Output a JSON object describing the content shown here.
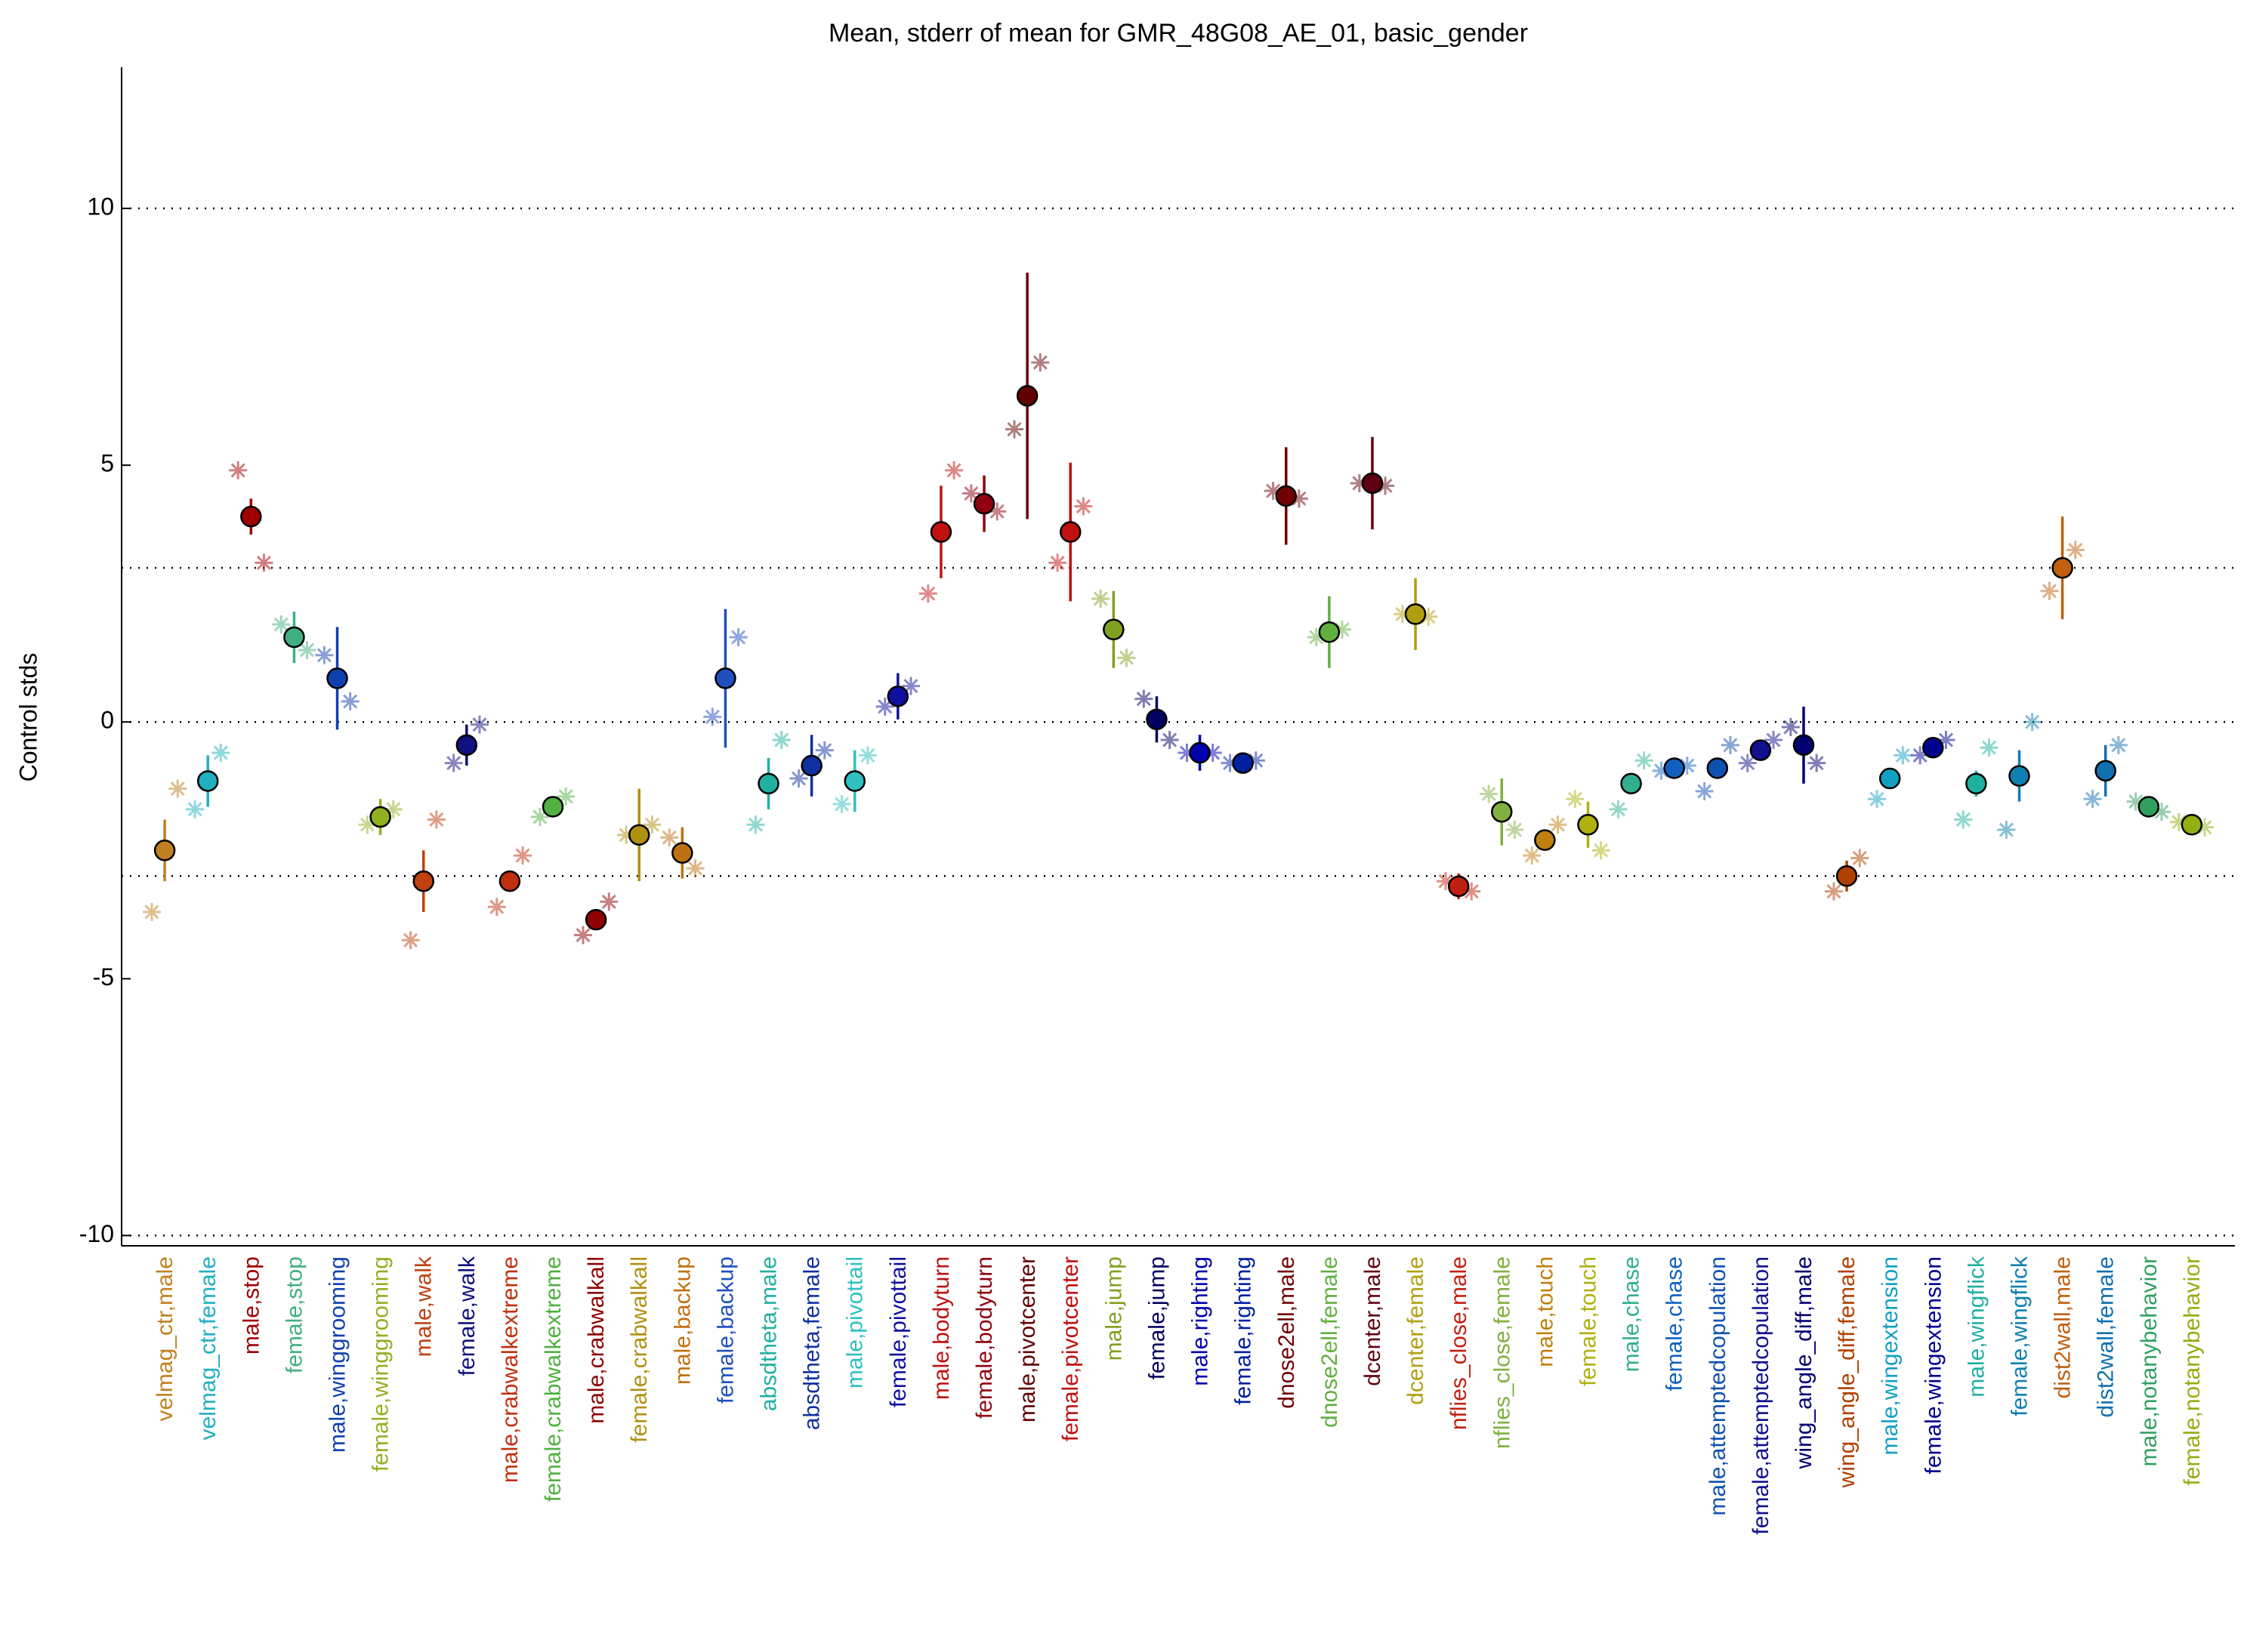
{
  "chart_data": {
    "type": "errorbar",
    "title": "Mean, stderr of mean for GMR_48G08_AE_01, basic_gender",
    "y_label": "Control stds",
    "categories": [
      "velmag_ctr,male",
      "velmag_ctr,female",
      "male,stop",
      "female,stop",
      "male,winggrooming",
      "female,winggrooming",
      "male,walk",
      "female,walk",
      "male,crabwalkextreme",
      "female,crabwalkextreme",
      "male,crabwalkall",
      "female,crabwalkall",
      "male,backup",
      "female,backup",
      "absdtheta,male",
      "absdtheta,female",
      "male,pivottail",
      "female,pivottail",
      "male,bodyturn",
      "female,bodyturn",
      "male,pivotcenter",
      "female,pivotcenter",
      "male,jump",
      "female,jump",
      "male,righting",
      "female,righting",
      "dnose2ell,male",
      "dnose2ell,female",
      "dcenter,male",
      "dcenter,female",
      "nflies_close,male",
      "nflies_close,female",
      "male,touch",
      "female,touch",
      "male,chase",
      "female,chase",
      "male,attemptedcopulation",
      "female,attemptedcopulation",
      "wing_angle_diff,male",
      "wing_angle_diff,female",
      "male,wingextension",
      "female,wingextension",
      "male,wingflick",
      "female,wingflick",
      "dist2wall,male",
      "dist2wall,female",
      "male,notanybehavior",
      "female,notanybehavior"
    ],
    "colors": [
      "#c08020",
      "#20b0c0",
      "#a00000",
      "#40b080",
      "#1040b0",
      "#90b020",
      "#c04010",
      "#101080",
      "#c03010",
      "#50b040",
      "#900000",
      "#b09010",
      "#c07010",
      "#2050c0",
      "#20b0a0",
      "#1030a0",
      "#30c0c0",
      "#1010a0",
      "#c01010",
      "#900010",
      "#600000",
      "#c01010",
      "#80a020",
      "#000060",
      "#0000b0",
      "#0020a0",
      "#700000",
      "#60b040",
      "#600010",
      "#b0a010",
      "#c02010",
      "#80b040",
      "#c08010",
      "#b0b010",
      "#30b090",
      "#1060c0",
      "#1050b0",
      "#101090",
      "#000070",
      "#b04000",
      "#10a0c0",
      "#000090",
      "#20b0a0",
      "#1080b0",
      "#c06010",
      "#1070b0",
      "#30a060",
      "#90b010"
    ],
    "values": [
      -2.5,
      -1.15,
      4.0,
      1.65,
      0.85,
      -1.85,
      -3.1,
      -0.45,
      -3.1,
      -1.65,
      -3.85,
      -2.2,
      -2.55,
      0.85,
      -1.2,
      -0.85,
      -1.15,
      0.5,
      3.7,
      4.25,
      6.35,
      3.7,
      1.8,
      0.05,
      -0.6,
      -0.8,
      4.4,
      1.75,
      4.65,
      2.1,
      -3.2,
      -1.75,
      -2.3,
      -2.0,
      -1.2,
      -0.9,
      -0.9,
      -0.55,
      -0.45,
      -3.0,
      -1.1,
      -0.5,
      -1.2,
      -1.05,
      3.0,
      -0.95,
      -1.65,
      -2.0
    ],
    "errors": [
      0.6,
      0.5,
      0.35,
      0.5,
      1.0,
      0.35,
      0.6,
      0.4,
      0.1,
      0.2,
      0.15,
      0.9,
      0.5,
      1.35,
      0.5,
      0.6,
      0.6,
      0.45,
      0.9,
      0.55,
      2.4,
      1.35,
      0.75,
      0.45,
      0.35,
      0.2,
      0.95,
      0.7,
      0.9,
      0.7,
      0.25,
      0.65,
      0.15,
      0.45,
      0.1,
      0.2,
      0.1,
      0.2,
      0.75,
      0.3,
      0.1,
      0.15,
      0.25,
      0.5,
      1.0,
      0.5,
      0.15,
      0.15
    ],
    "points": [
      [
        -3.7,
        -1.3
      ],
      [
        -1.7,
        -0.6
      ],
      [
        4.9,
        3.1
      ],
      [
        1.9,
        1.4
      ],
      [
        1.3,
        0.4
      ],
      [
        -2.0,
        -1.7
      ],
      [
        -4.25,
        -1.9
      ],
      [
        -0.8,
        -0.05
      ],
      [
        -3.6,
        -2.6
      ],
      [
        -1.85,
        -1.45
      ],
      [
        -4.15,
        -3.5
      ],
      [
        -2.2,
        -2.0
      ],
      [
        -2.25,
        -2.85
      ],
      [
        0.1,
        1.65
      ],
      [
        -2.0,
        -0.35
      ],
      [
        -1.1,
        -0.55
      ],
      [
        -1.6,
        -0.65
      ],
      [
        0.3,
        0.7
      ],
      [
        2.5,
        4.9
      ],
      [
        4.45,
        4.1
      ],
      [
        5.7,
        7.0
      ],
      [
        3.1,
        4.2
      ],
      [
        2.4,
        1.25
      ],
      [
        0.45,
        -0.35
      ],
      [
        -0.6,
        -0.6
      ],
      [
        -0.8,
        -0.75
      ],
      [
        4.5,
        4.35
      ],
      [
        1.65,
        1.8
      ],
      [
        4.65,
        4.6
      ],
      [
        2.1,
        2.05
      ],
      [
        -3.1,
        -3.3
      ],
      [
        -1.4,
        -2.1
      ],
      [
        -2.6,
        -2.0
      ],
      [
        -1.5,
        -2.5
      ],
      [
        -1.7,
        -0.75
      ],
      [
        -0.95,
        -0.85
      ],
      [
        -1.35,
        -0.45
      ],
      [
        -0.8,
        -0.35
      ],
      [
        -0.1,
        -0.8
      ],
      [
        -3.3,
        -2.65
      ],
      [
        -1.5,
        -0.65
      ],
      [
        -0.65,
        -0.35
      ],
      [
        -1.9,
        -0.5
      ],
      [
        -2.1,
        0.0
      ],
      [
        2.55,
        3.35
      ],
      [
        -1.5,
        -0.45
      ],
      [
        -1.55,
        -1.75
      ],
      [
        -1.95,
        -2.05
      ]
    ],
    "ylim": [
      -10.2,
      12.75
    ],
    "yticks": [
      -10,
      -5,
      0,
      5,
      10
    ],
    "grid_lines": [
      -10,
      -3,
      0,
      3,
      10
    ]
  }
}
